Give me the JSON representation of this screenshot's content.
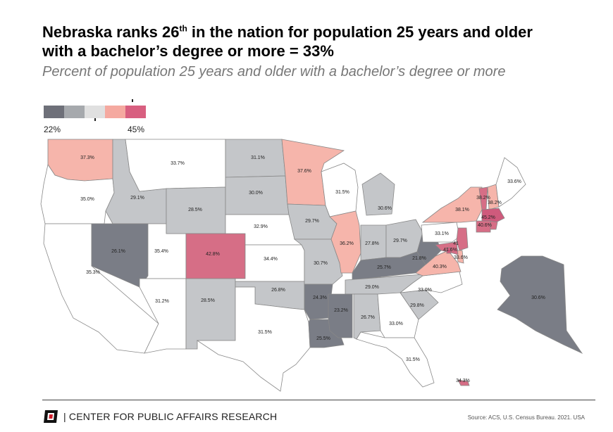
{
  "header": {
    "title_line1_before": "Nebraska ranks 26",
    "title_line1_sup": "th",
    "title_line1_after": " in the nation for population 25 years and older",
    "title_line2": "with a bachelor’s degree or more = 33%",
    "subtitle": "Percent of population 25 years and older with a bachelor’s degree or more"
  },
  "legend": {
    "min_label": "22%",
    "max_label": "45%",
    "swatches": [
      "#6e7079",
      "#a6a9ad",
      "#e0e0e0",
      "#f5a9a0",
      "#d85f80"
    ]
  },
  "colors": {
    "dark_gray": "#7a7d86",
    "mid_gray": "#c4c6c9",
    "white": "#ffffff",
    "light_pink": "#f6b5ab",
    "pink": "#d66e86",
    "deep_pink": "#cf5a7c",
    "border": "#888888"
  },
  "map_data": {
    "states": [
      {
        "name": "Washington",
        "value": "37.3%",
        "color": "light_pink"
      },
      {
        "name": "Oregon",
        "value": "35.0%",
        "color": "white"
      },
      {
        "name": "California",
        "value": "35.3%",
        "color": "white"
      },
      {
        "name": "Idaho",
        "value": "29.1%",
        "color": "mid_gray"
      },
      {
        "name": "Nevada",
        "value": "26.1%",
        "color": "dark_gray"
      },
      {
        "name": "Utah",
        "value": "35.4%",
        "color": "white"
      },
      {
        "name": "Arizona",
        "value": "31.2%",
        "color": "white"
      },
      {
        "name": "Montana",
        "value": "33.7%",
        "color": "white"
      },
      {
        "name": "Wyoming",
        "value": "28.5%",
        "color": "mid_gray"
      },
      {
        "name": "Colorado",
        "value": "42.8%",
        "color": "pink"
      },
      {
        "name": "New Mexico",
        "value": "28.5%",
        "color": "mid_gray"
      },
      {
        "name": "North Dakota",
        "value": "31.1%",
        "color": "mid_gray"
      },
      {
        "name": "South Dakota",
        "value": "30.0%",
        "color": "mid_gray"
      },
      {
        "name": "Nebraska",
        "value": "32.9%",
        "color": "white"
      },
      {
        "name": "Kansas",
        "value": "34.4%",
        "color": "white"
      },
      {
        "name": "Oklahoma",
        "value": "26.8%",
        "color": "mid_gray"
      },
      {
        "name": "Texas",
        "value": "31.5%",
        "color": "white"
      },
      {
        "name": "Minnesota",
        "value": "37.6%",
        "color": "light_pink"
      },
      {
        "name": "Iowa",
        "value": "29.7%",
        "color": "mid_gray"
      },
      {
        "name": "Missouri",
        "value": "30.7%",
        "color": "mid_gray"
      },
      {
        "name": "Arkansas",
        "value": "24.3%",
        "color": "dark_gray"
      },
      {
        "name": "Louisiana",
        "value": "25.5%",
        "color": "dark_gray"
      },
      {
        "name": "Wisconsin",
        "value": "31.5%",
        "color": "white"
      },
      {
        "name": "Illinois",
        "value": "36.2%",
        "color": "light_pink"
      },
      {
        "name": "Michigan",
        "value": "30.6%",
        "color": "mid_gray"
      },
      {
        "name": "Indiana",
        "value": "27.8%",
        "color": "mid_gray"
      },
      {
        "name": "Ohio",
        "value": "29.7%",
        "color": "mid_gray"
      },
      {
        "name": "Kentucky",
        "value": "25.7%",
        "color": "dark_gray"
      },
      {
        "name": "Tennessee",
        "value": "29.0%",
        "color": "mid_gray"
      },
      {
        "name": "Mississippi",
        "value": "23.2%",
        "color": "dark_gray"
      },
      {
        "name": "Alabama",
        "value": "26.7%",
        "color": "mid_gray"
      },
      {
        "name": "Georgia",
        "value": "33.0%",
        "color": "white"
      },
      {
        "name": "Florida",
        "value": "31.5%",
        "color": "white"
      },
      {
        "name": "South Carolina",
        "value": "29.8%",
        "color": "mid_gray"
      },
      {
        "name": "North Carolina",
        "value": "33.0%",
        "color": "white"
      },
      {
        "name": "Virginia",
        "value": "40.3%",
        "color": "light_pink"
      },
      {
        "name": "West Virginia",
        "value": "21.8%",
        "color": "dark_gray"
      },
      {
        "name": "Pennsylvania",
        "value": "33.1%",
        "color": "white"
      },
      {
        "name": "New York",
        "value": "38.1%",
        "color": "light_pink"
      },
      {
        "name": "Vermont",
        "value": "38.2%",
        "color": "pink"
      },
      {
        "name": "New Hampshire",
        "value": "38.2%",
        "color": "light_pink"
      },
      {
        "name": "Maine",
        "value": "33.6%",
        "color": "white"
      },
      {
        "name": "Massachusetts",
        "value": "45.2%",
        "color": "deep_pink"
      },
      {
        "name": "Connecticut",
        "value": "40.6%",
        "color": "pink"
      },
      {
        "name": "New Jersey",
        "value": "",
        "color": "pink"
      },
      {
        "name": "Delaware",
        "value": "33.6%",
        "color": "light_pink"
      },
      {
        "name": "Maryland",
        "value": "41.6%",
        "color": "pink"
      },
      {
        "name": "Rhode Island",
        "value": "",
        "color": "pink"
      },
      {
        "name": "District of Columbia",
        "value": "",
        "color": "deep_pink"
      },
      {
        "name": "Alaska",
        "value": "30.6%",
        "color": "dark_gray"
      },
      {
        "name": "Hawaii",
        "value": "34.3%",
        "color": "pink"
      }
    ],
    "extra_labels": [
      "41"
    ]
  },
  "footer": {
    "brand": "| CENTER FOR PUBLIC AFFAIRS RESEARCH",
    "source": "Source: ACS, U.S. Census Bureau. 2021. USA"
  }
}
